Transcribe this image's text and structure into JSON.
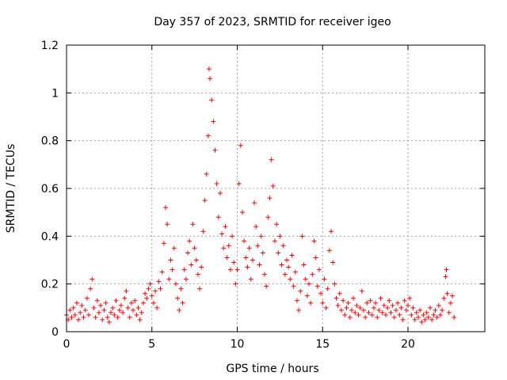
{
  "chart_data": {
    "type": "scatter",
    "title": "Day 357 of 2023, SRMTID for receiver igeo",
    "xlabel": "GPS time / hours",
    "ylabel": "SRMTID / TECUs",
    "xlim": [
      0,
      24.5
    ],
    "ylim": [
      0,
      1.2
    ],
    "xticks": [
      0,
      5,
      10,
      15,
      20
    ],
    "xtick_labels": [
      "0",
      "5",
      "10",
      "15",
      "20"
    ],
    "yticks": [
      0,
      0.2,
      0.4,
      0.6,
      0.8,
      1.0,
      1.2
    ],
    "ytick_labels": [
      "0",
      "0.2",
      "0.4",
      "0.6",
      "0.8",
      "1",
      "1.2"
    ],
    "grid": true,
    "marker": "+",
    "color": "#ff0000",
    "series": [
      {
        "name": "igeo",
        "points": [
          [
            0.0,
            0.07
          ],
          [
            0.1,
            0.05
          ],
          [
            0.2,
            0.09
          ],
          [
            0.3,
            0.06
          ],
          [
            0.4,
            0.1
          ],
          [
            0.5,
            0.07
          ],
          [
            0.6,
            0.12
          ],
          [
            0.7,
            0.05
          ],
          [
            0.8,
            0.08
          ],
          [
            0.9,
            0.11
          ],
          [
            1.0,
            0.06
          ],
          [
            1.1,
            0.09
          ],
          [
            1.2,
            0.14
          ],
          [
            1.3,
            0.07
          ],
          [
            1.4,
            0.18
          ],
          [
            1.5,
            0.22
          ],
          [
            1.6,
            0.1
          ],
          [
            1.7,
            0.06
          ],
          [
            1.8,
            0.13
          ],
          [
            1.9,
            0.08
          ],
          [
            2.0,
            0.11
          ],
          [
            2.1,
            0.05
          ],
          [
            2.2,
            0.09
          ],
          [
            2.3,
            0.12
          ],
          [
            2.4,
            0.06
          ],
          [
            2.5,
            0.04
          ],
          [
            2.6,
            0.08
          ],
          [
            2.7,
            0.1
          ],
          [
            2.8,
            0.07
          ],
          [
            2.9,
            0.13
          ],
          [
            3.0,
            0.06
          ],
          [
            3.1,
            0.09
          ],
          [
            3.2,
            0.11
          ],
          [
            3.3,
            0.08
          ],
          [
            3.4,
            0.14
          ],
          [
            3.5,
            0.17
          ],
          [
            3.6,
            0.1
          ],
          [
            3.7,
            0.06
          ],
          [
            3.8,
            0.12
          ],
          [
            3.9,
            0.09
          ],
          [
            4.0,
            0.13
          ],
          [
            4.1,
            0.07
          ],
          [
            4.2,
            0.1
          ],
          [
            4.3,
            0.05
          ],
          [
            4.4,
            0.08
          ],
          [
            4.5,
            0.12
          ],
          [
            4.6,
            0.16
          ],
          [
            4.7,
            0.14
          ],
          [
            4.8,
            0.18
          ],
          [
            4.9,
            0.2
          ],
          [
            5.0,
            0.15
          ],
          [
            5.1,
            0.12
          ],
          [
            5.2,
            0.17
          ],
          [
            5.3,
            0.1
          ],
          [
            5.4,
            0.21
          ],
          [
            5.5,
            0.18
          ],
          [
            5.6,
            0.25
          ],
          [
            5.7,
            0.37
          ],
          [
            5.8,
            0.52
          ],
          [
            5.9,
            0.45
          ],
          [
            6.0,
            0.22
          ],
          [
            6.1,
            0.3
          ],
          [
            6.2,
            0.26
          ],
          [
            6.3,
            0.35
          ],
          [
            6.4,
            0.2
          ],
          [
            6.5,
            0.14
          ],
          [
            6.6,
            0.09
          ],
          [
            6.7,
            0.18
          ],
          [
            6.8,
            0.12
          ],
          [
            6.9,
            0.26
          ],
          [
            7.0,
            0.22
          ],
          [
            7.1,
            0.33
          ],
          [
            7.2,
            0.38
          ],
          [
            7.3,
            0.28
          ],
          [
            7.4,
            0.45
          ],
          [
            7.5,
            0.35
          ],
          [
            7.6,
            0.3
          ],
          [
            7.7,
            0.24
          ],
          [
            7.8,
            0.18
          ],
          [
            7.9,
            0.27
          ],
          [
            8.0,
            0.42
          ],
          [
            8.1,
            0.55
          ],
          [
            8.2,
            0.66
          ],
          [
            8.3,
            0.82
          ],
          [
            8.35,
            1.1
          ],
          [
            8.4,
            1.06
          ],
          [
            8.5,
            0.97
          ],
          [
            8.6,
            0.88
          ],
          [
            8.7,
            0.76
          ],
          [
            8.8,
            0.62
          ],
          [
            8.9,
            0.48
          ],
          [
            9.0,
            0.58
          ],
          [
            9.1,
            0.41
          ],
          [
            9.2,
            0.35
          ],
          [
            9.3,
            0.44
          ],
          [
            9.4,
            0.31
          ],
          [
            9.5,
            0.36
          ],
          [
            9.6,
            0.26
          ],
          [
            9.7,
            0.4
          ],
          [
            9.8,
            0.29
          ],
          [
            9.9,
            0.2
          ],
          [
            10.0,
            0.26
          ],
          [
            10.1,
            0.62
          ],
          [
            10.2,
            0.78
          ],
          [
            10.3,
            0.5
          ],
          [
            10.4,
            0.38
          ],
          [
            10.5,
            0.31
          ],
          [
            10.6,
            0.27
          ],
          [
            10.7,
            0.35
          ],
          [
            10.8,
            0.22
          ],
          [
            10.9,
            0.3
          ],
          [
            11.0,
            0.54
          ],
          [
            11.1,
            0.44
          ],
          [
            11.2,
            0.36
          ],
          [
            11.3,
            0.28
          ],
          [
            11.4,
            0.4
          ],
          [
            11.5,
            0.33
          ],
          [
            11.6,
            0.24
          ],
          [
            11.7,
            0.19
          ],
          [
            11.8,
            0.48
          ],
          [
            11.9,
            0.56
          ],
          [
            12.0,
            0.72
          ],
          [
            12.1,
            0.61
          ],
          [
            12.2,
            0.38
          ],
          [
            12.3,
            0.45
          ],
          [
            12.4,
            0.33
          ],
          [
            12.5,
            0.4
          ],
          [
            12.6,
            0.28
          ],
          [
            12.7,
            0.36
          ],
          [
            12.8,
            0.24
          ],
          [
            12.9,
            0.3
          ],
          [
            13.0,
            0.27
          ],
          [
            13.1,
            0.22
          ],
          [
            13.2,
            0.32
          ],
          [
            13.3,
            0.19
          ],
          [
            13.4,
            0.25
          ],
          [
            13.5,
            0.13
          ],
          [
            13.6,
            0.09
          ],
          [
            13.7,
            0.17
          ],
          [
            13.8,
            0.4
          ],
          [
            13.9,
            0.28
          ],
          [
            14.0,
            0.22
          ],
          [
            14.1,
            0.15
          ],
          [
            14.2,
            0.2
          ],
          [
            14.3,
            0.12
          ],
          [
            14.4,
            0.24
          ],
          [
            14.5,
            0.38
          ],
          [
            14.6,
            0.31
          ],
          [
            14.7,
            0.19
          ],
          [
            14.8,
            0.26
          ],
          [
            14.9,
            0.16
          ],
          [
            15.0,
            0.12
          ],
          [
            15.1,
            0.22
          ],
          [
            15.2,
            0.1
          ],
          [
            15.3,
            0.18
          ],
          [
            15.4,
            0.34
          ],
          [
            15.5,
            0.42
          ],
          [
            15.6,
            0.29
          ],
          [
            15.7,
            0.2
          ],
          [
            15.8,
            0.14
          ],
          [
            15.9,
            0.11
          ],
          [
            16.0,
            0.16
          ],
          [
            16.1,
            0.09
          ],
          [
            16.2,
            0.13
          ],
          [
            16.3,
            0.07
          ],
          [
            16.4,
            0.1
          ],
          [
            16.5,
            0.12
          ],
          [
            16.6,
            0.06
          ],
          [
            16.7,
            0.09
          ],
          [
            16.8,
            0.14
          ],
          [
            16.9,
            0.08
          ],
          [
            17.0,
            0.11
          ],
          [
            17.1,
            0.07
          ],
          [
            17.2,
            0.1
          ],
          [
            17.3,
            0.17
          ],
          [
            17.4,
            0.09
          ],
          [
            17.5,
            0.06
          ],
          [
            17.6,
            0.12
          ],
          [
            17.7,
            0.08
          ],
          [
            17.8,
            0.13
          ],
          [
            17.9,
            0.07
          ],
          [
            18.0,
            0.1
          ],
          [
            18.1,
            0.12
          ],
          [
            18.2,
            0.06
          ],
          [
            18.3,
            0.09
          ],
          [
            18.4,
            0.14
          ],
          [
            18.5,
            0.08
          ],
          [
            18.6,
            0.11
          ],
          [
            18.7,
            0.07
          ],
          [
            18.8,
            0.1
          ],
          [
            18.9,
            0.13
          ],
          [
            19.0,
            0.08
          ],
          [
            19.1,
            0.11
          ],
          [
            19.2,
            0.06
          ],
          [
            19.3,
            0.09
          ],
          [
            19.4,
            0.12
          ],
          [
            19.5,
            0.07
          ],
          [
            19.6,
            0.1
          ],
          [
            19.7,
            0.05
          ],
          [
            19.8,
            0.13
          ],
          [
            19.9,
            0.09
          ],
          [
            20.0,
            0.11
          ],
          [
            20.1,
            0.14
          ],
          [
            20.2,
            0.07
          ],
          [
            20.3,
            0.1
          ],
          [
            20.4,
            0.05
          ],
          [
            20.5,
            0.08
          ],
          [
            20.6,
            0.06
          ],
          [
            20.7,
            0.09
          ],
          [
            20.8,
            0.04
          ],
          [
            20.9,
            0.07
          ],
          [
            21.0,
            0.05
          ],
          [
            21.1,
            0.08
          ],
          [
            21.2,
            0.06
          ],
          [
            21.3,
            0.1
          ],
          [
            21.4,
            0.05
          ],
          [
            21.5,
            0.07
          ],
          [
            21.6,
            0.09
          ],
          [
            21.7,
            0.06
          ],
          [
            21.8,
            0.11
          ],
          [
            21.9,
            0.07
          ],
          [
            22.0,
            0.09
          ],
          [
            22.1,
            0.14
          ],
          [
            22.2,
            0.23
          ],
          [
            22.25,
            0.26
          ],
          [
            22.3,
            0.16
          ],
          [
            22.4,
            0.08
          ],
          [
            22.5,
            0.12
          ],
          [
            22.6,
            0.15
          ],
          [
            22.7,
            0.06
          ]
        ]
      }
    ]
  }
}
